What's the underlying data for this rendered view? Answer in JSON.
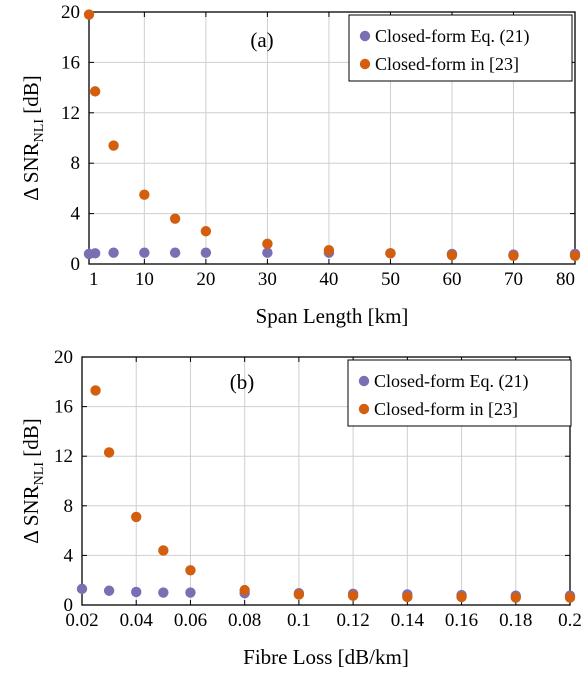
{
  "chart_data": [
    {
      "type": "scatter",
      "panel_label": "(a)",
      "xlabel": "Span Length [km]",
      "ylabel_main": "Δ SNR",
      "ylabel_sub": "NLI",
      "ylabel_unit": " [dB]",
      "xlim": [
        1,
        80
      ],
      "ylim": [
        0,
        20
      ],
      "xticks": [
        1,
        10,
        20,
        30,
        40,
        50,
        60,
        70,
        80
      ],
      "xtick_labels": [
        "1",
        "10",
        "20",
        "30",
        "40",
        "50",
        "60",
        "70",
        "80"
      ],
      "yticks": [
        0,
        4,
        8,
        12,
        16,
        20
      ],
      "ytick_labels": [
        "0",
        "4",
        "8",
        "12",
        "16",
        "20"
      ],
      "grid": true,
      "legend_position": "top-right",
      "series": [
        {
          "name": "Closed-form Eq. (21)",
          "color": "#7b6fb4",
          "points": [
            [
              1,
              0.8
            ],
            [
              2,
              0.85
            ],
            [
              5,
              0.9
            ],
            [
              10,
              0.9
            ],
            [
              15,
              0.9
            ],
            [
              20,
              0.9
            ],
            [
              30,
              0.9
            ],
            [
              40,
              0.9
            ],
            [
              50,
              0.85
            ],
            [
              60,
              0.8
            ],
            [
              70,
              0.75
            ],
            [
              80,
              0.8
            ]
          ]
        },
        {
          "name": "Closed-form in [23]",
          "color": "#d35f0e",
          "points": [
            [
              1,
              19.8
            ],
            [
              2,
              13.7
            ],
            [
              5,
              9.4
            ],
            [
              10,
              5.5
            ],
            [
              15,
              3.6
            ],
            [
              20,
              2.6
            ],
            [
              30,
              1.6
            ],
            [
              40,
              1.1
            ],
            [
              50,
              0.85
            ],
            [
              60,
              0.7
            ],
            [
              70,
              0.65
            ],
            [
              80,
              0.65
            ]
          ]
        }
      ]
    },
    {
      "type": "scatter",
      "panel_label": "(b)",
      "xlabel": "Fibre Loss [dB/km]",
      "ylabel_main": "Δ SNR",
      "ylabel_sub": "NLI",
      "ylabel_unit": " [dB]",
      "xlim": [
        0.02,
        0.2
      ],
      "ylim": [
        0,
        20
      ],
      "xticks": [
        0.02,
        0.04,
        0.06,
        0.08,
        0.1,
        0.12,
        0.14,
        0.16,
        0.18,
        0.2
      ],
      "xtick_labels": [
        "0.02",
        "0.04",
        "0.06",
        "0.08",
        "0.1",
        "0.12",
        "0.14",
        "0.16",
        "0.18",
        "0.2"
      ],
      "yticks": [
        0,
        4,
        8,
        12,
        16,
        20
      ],
      "ytick_labels": [
        "0",
        "4",
        "8",
        "12",
        "16",
        "20"
      ],
      "grid": true,
      "legend_position": "top-right",
      "series": [
        {
          "name": "Closed-form Eq. (21)",
          "color": "#7b6fb4",
          "points": [
            [
              0.02,
              1.3
            ],
            [
              0.03,
              1.15
            ],
            [
              0.04,
              1.05
            ],
            [
              0.05,
              1.0
            ],
            [
              0.06,
              1.0
            ],
            [
              0.08,
              0.95
            ],
            [
              0.1,
              0.95
            ],
            [
              0.12,
              0.9
            ],
            [
              0.14,
              0.85
            ],
            [
              0.16,
              0.8
            ],
            [
              0.18,
              0.75
            ],
            [
              0.2,
              0.75
            ]
          ]
        },
        {
          "name": "Closed-form in [23]",
          "color": "#d35f0e",
          "points": [
            [
              0.025,
              17.3
            ],
            [
              0.03,
              12.3
            ],
            [
              0.04,
              7.1
            ],
            [
              0.05,
              4.4
            ],
            [
              0.06,
              2.8
            ],
            [
              0.08,
              1.2
            ],
            [
              0.1,
              0.85
            ],
            [
              0.12,
              0.75
            ],
            [
              0.14,
              0.65
            ],
            [
              0.16,
              0.65
            ],
            [
              0.18,
              0.6
            ],
            [
              0.2,
              0.6
            ]
          ]
        }
      ]
    }
  ]
}
